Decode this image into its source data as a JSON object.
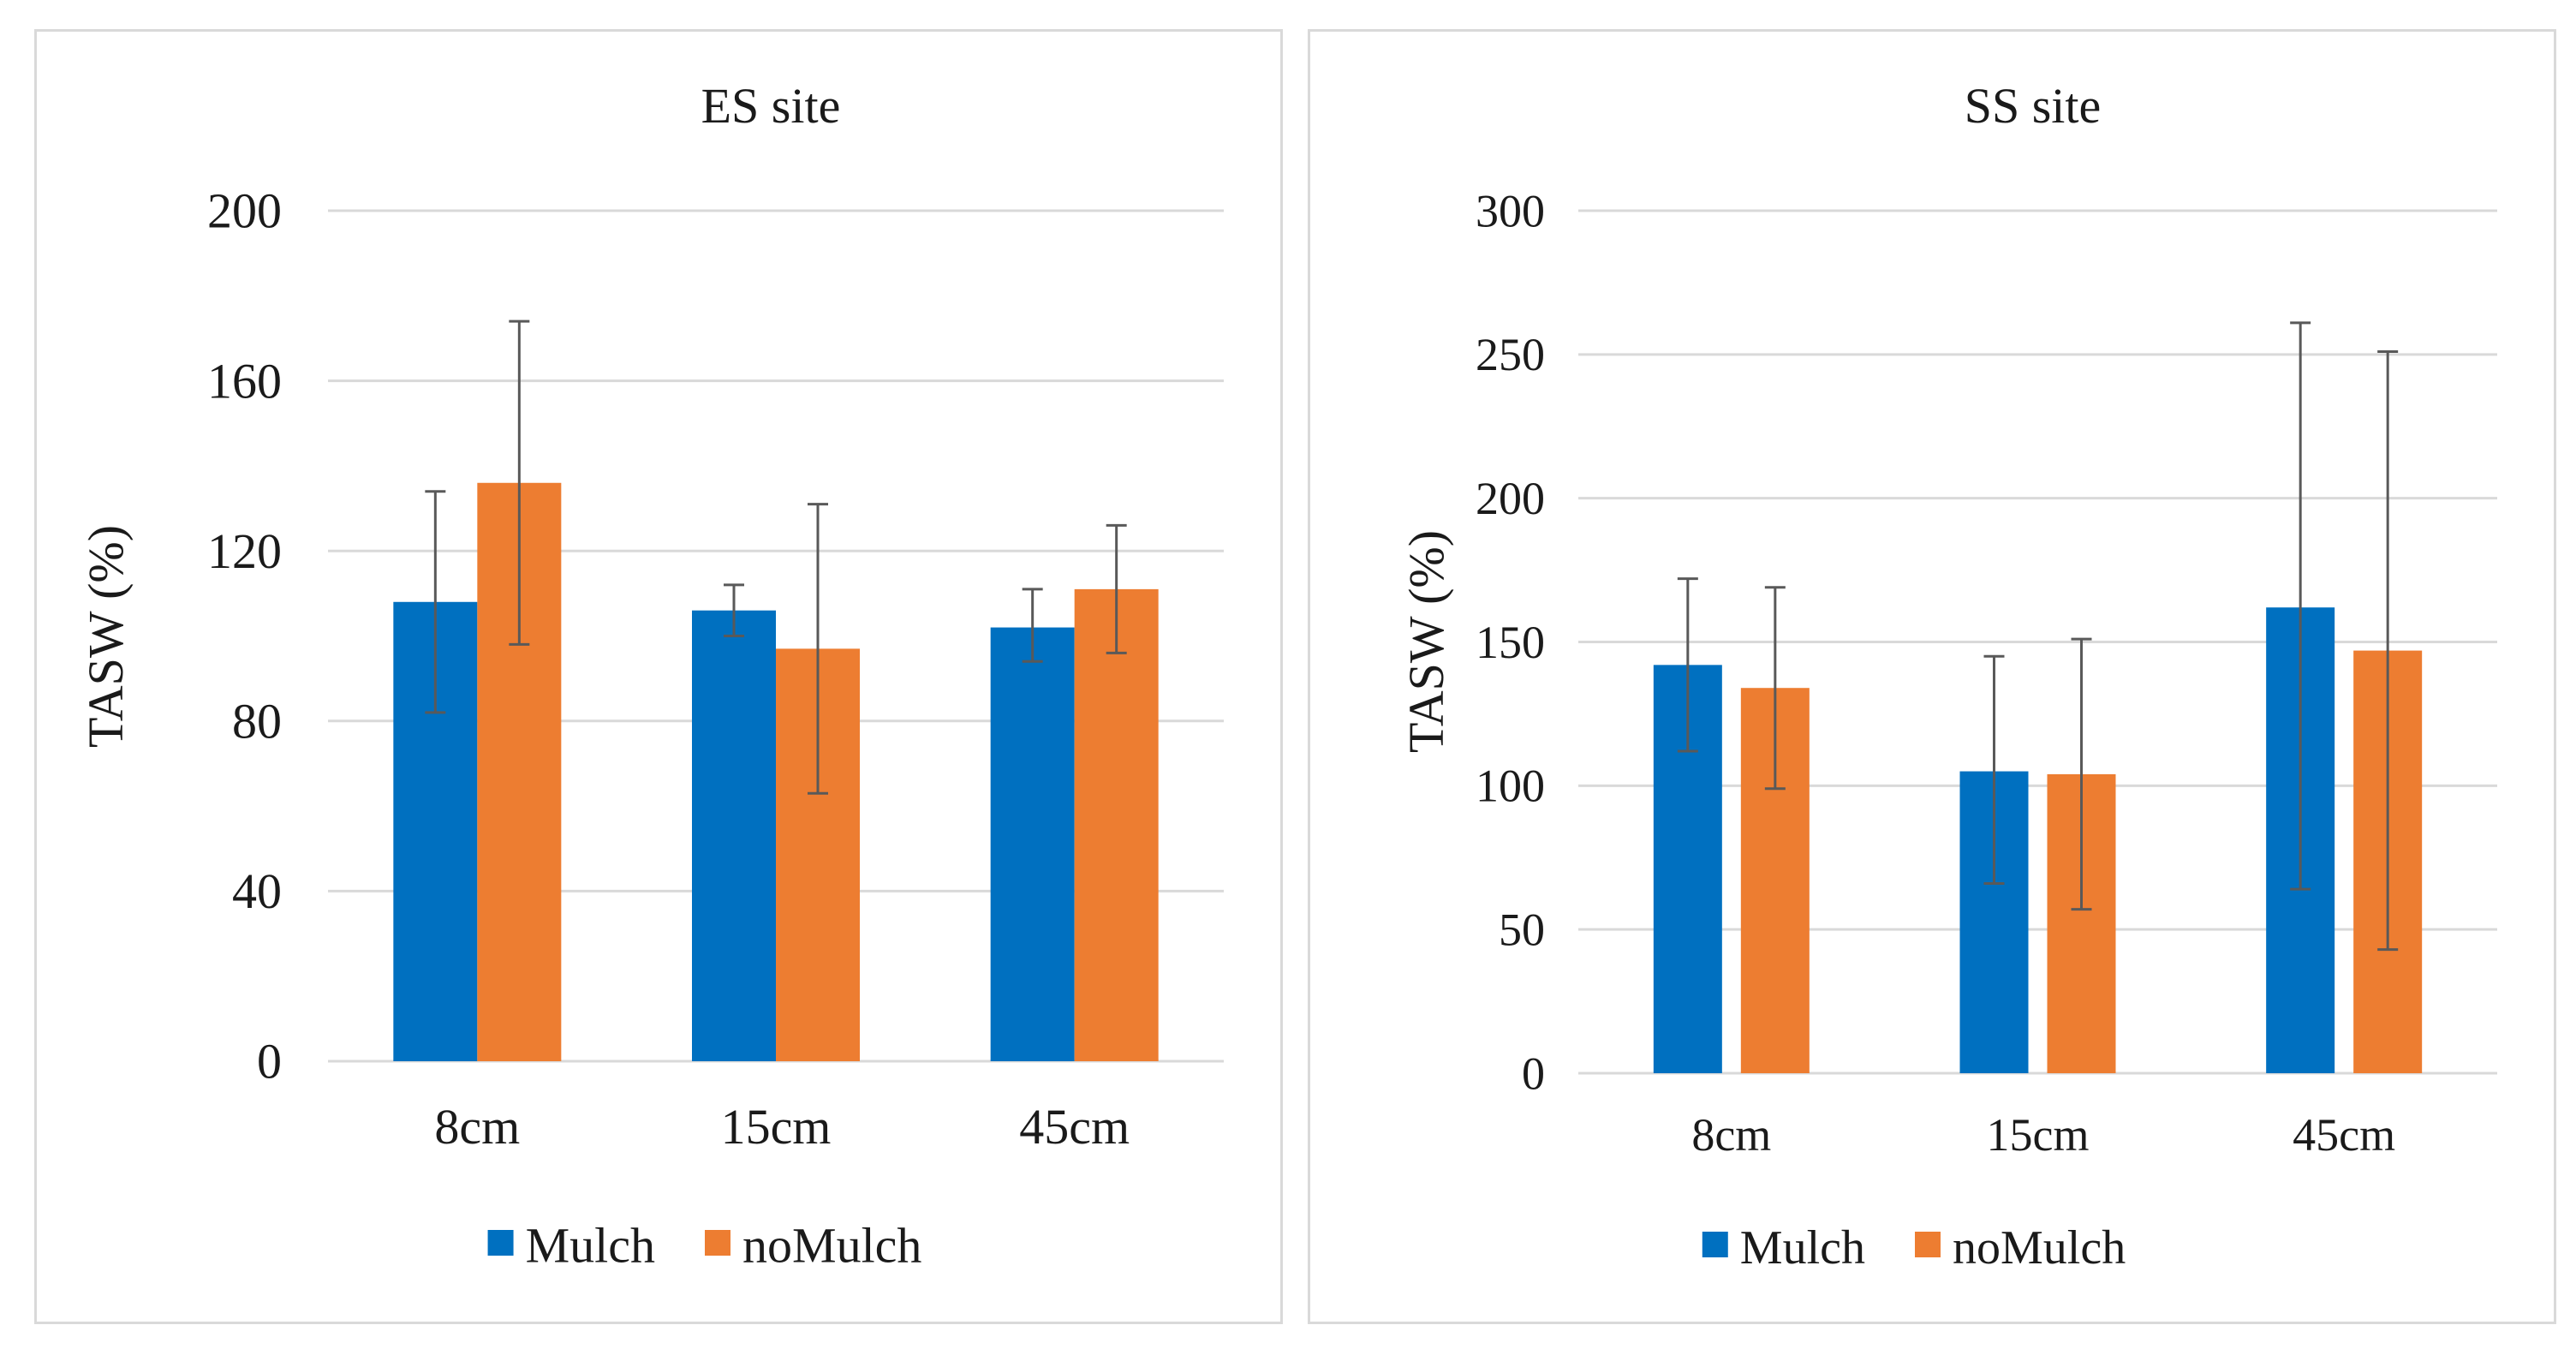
{
  "chart_data": [
    {
      "type": "bar",
      "title": "ES site",
      "xlabel": "",
      "ylabel": "TASW (%)",
      "categories": [
        "8cm",
        "15cm",
        "45cm"
      ],
      "ylim": [
        0,
        200
      ],
      "yticks": [
        0,
        40,
        80,
        120,
        160,
        200
      ],
      "grid": true,
      "legend": "bottom",
      "series": [
        {
          "name": "Mulch",
          "color": "#0070c0",
          "values": [
            108,
            106,
            102
          ],
          "err_low": [
            82,
            100,
            94
          ],
          "err_high": [
            134,
            112,
            111
          ]
        },
        {
          "name": "noMulch",
          "color": "#ed7d31",
          "values": [
            136,
            97,
            111
          ],
          "err_low": [
            98,
            63,
            96
          ],
          "err_high": [
            174,
            131,
            126
          ]
        }
      ]
    },
    {
      "type": "bar",
      "title": "SS site",
      "xlabel": "",
      "ylabel": "TASW (%)",
      "categories": [
        "8cm",
        "15cm",
        "45cm"
      ],
      "ylim": [
        0,
        300
      ],
      "yticks": [
        0,
        50,
        100,
        150,
        200,
        250,
        300
      ],
      "grid": true,
      "legend": "bottom",
      "series": [
        {
          "name": "Mulch",
          "color": "#0070c0",
          "values": [
            142,
            105,
            162
          ],
          "err_low": [
            112,
            66,
            64
          ],
          "err_high": [
            172,
            145,
            261
          ]
        },
        {
          "name": "noMulch",
          "color": "#ed7d31",
          "values": [
            134,
            104,
            147
          ],
          "err_low": [
            99,
            57,
            43
          ],
          "err_high": [
            169,
            151,
            251
          ]
        }
      ]
    }
  ]
}
